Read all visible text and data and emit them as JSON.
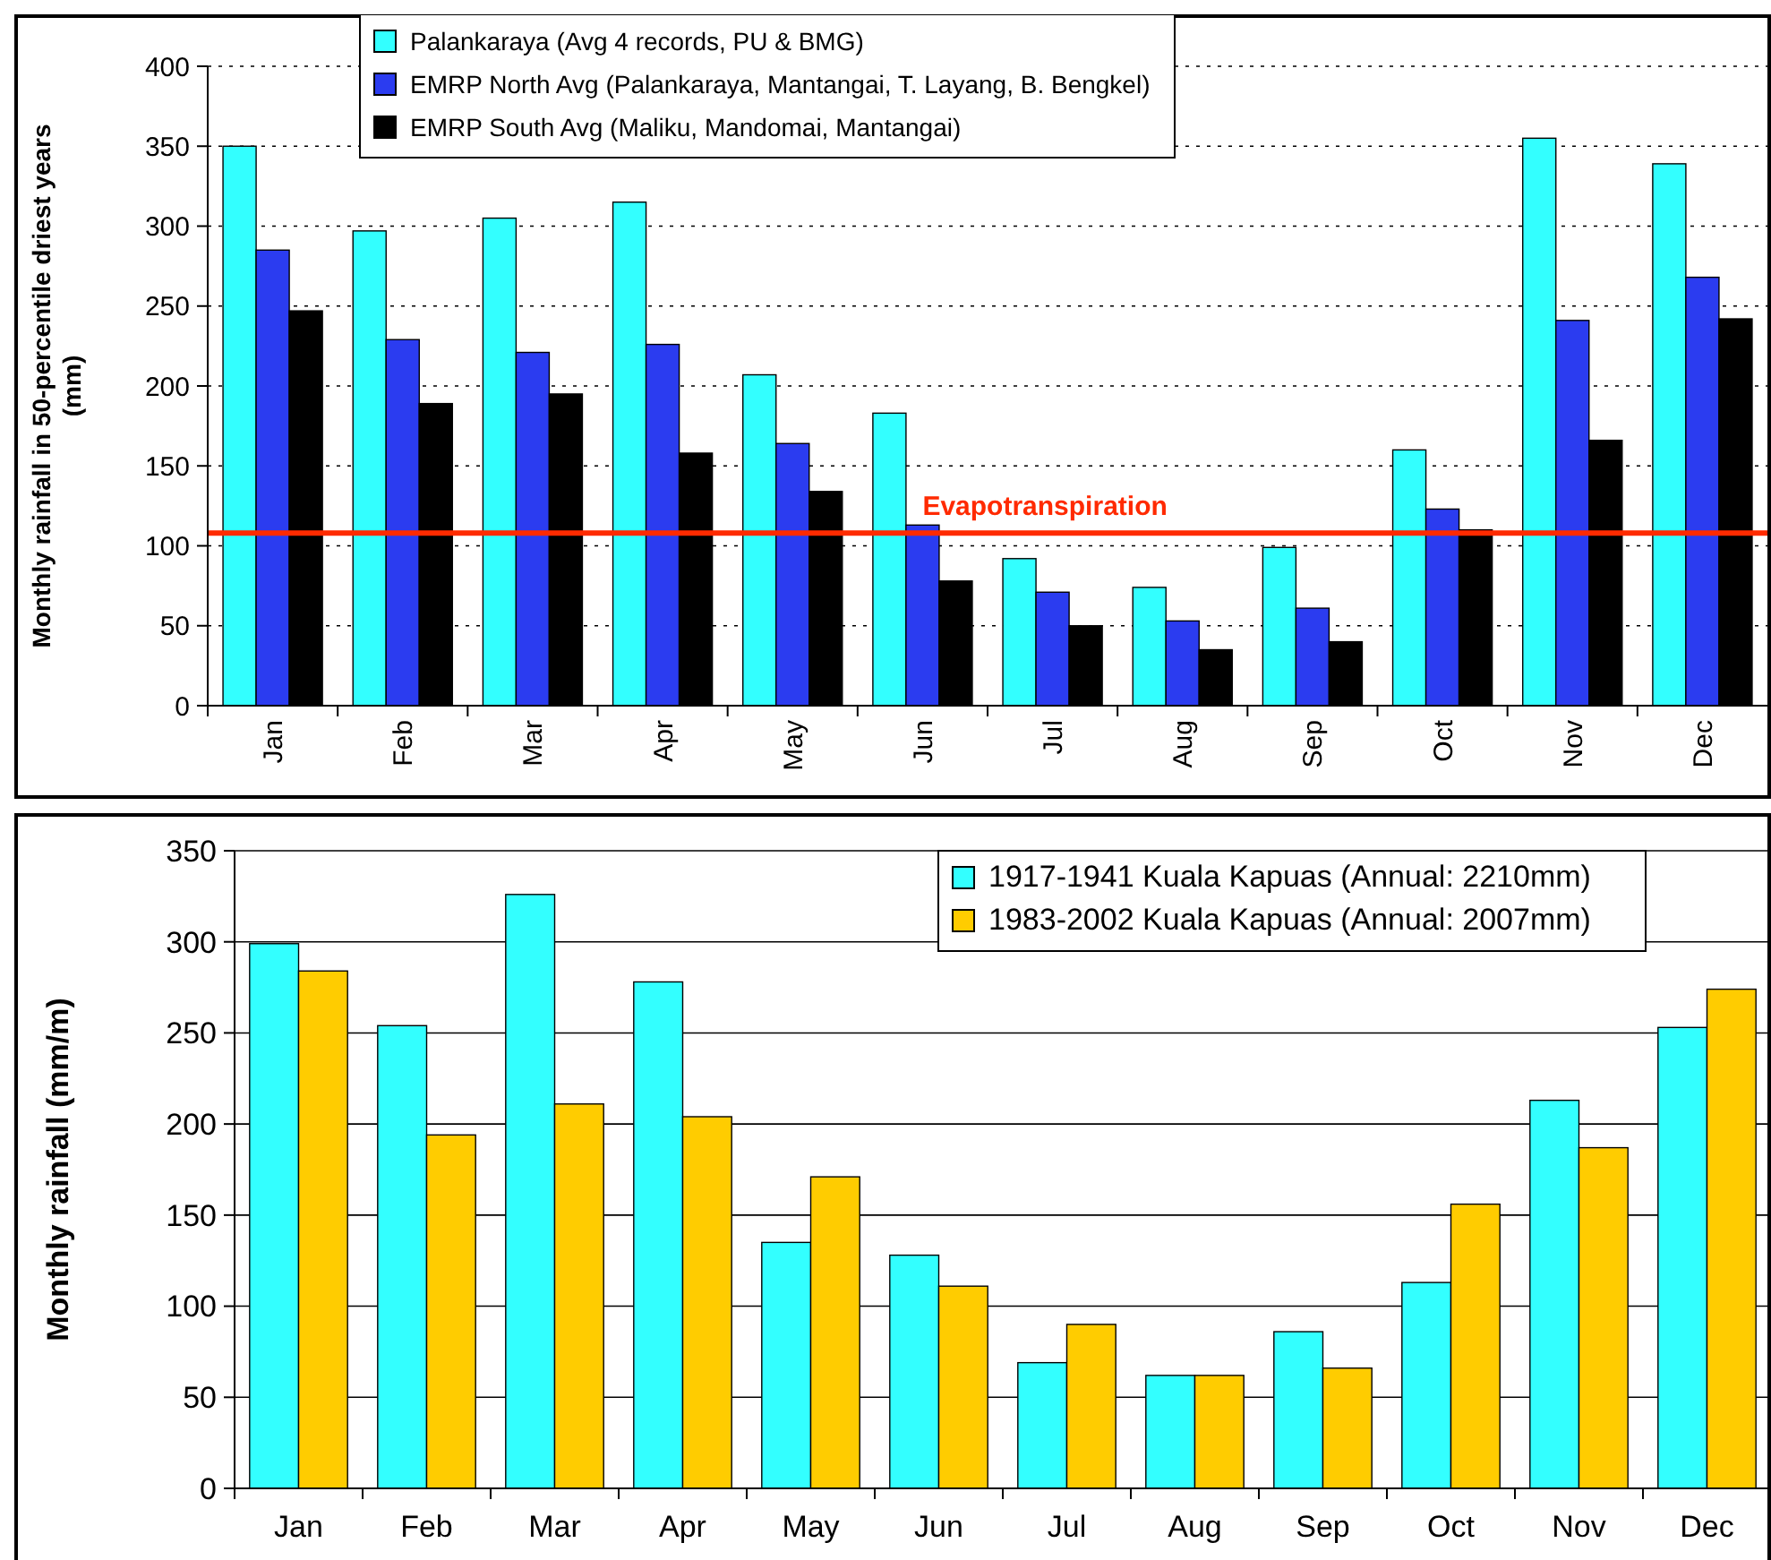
{
  "chart_data": [
    {
      "type": "bar",
      "ylabel": "Monthly rainfall in 50-percentile driest years (mm)",
      "categories": [
        "Jan",
        "Feb",
        "Mar",
        "Apr",
        "May",
        "Jun",
        "Jul",
        "Aug",
        "Sep",
        "Oct",
        "Nov",
        "Dec"
      ],
      "series": [
        {
          "name": "Palankaraya (Avg 4 records, PU & BMG)",
          "color": "#33ffff",
          "values": [
            350,
            297,
            305,
            315,
            207,
            183,
            92,
            74,
            99,
            160,
            355,
            339
          ]
        },
        {
          "name": "EMRP North Avg (Palankaraya, Mantangai, T. Layang, B. Bengkel)",
          "color": "#2b3cf0",
          "values": [
            285,
            229,
            221,
            226,
            164,
            113,
            71,
            53,
            61,
            123,
            241,
            268
          ]
        },
        {
          "name": "EMRP South Avg (Maliku, Mandomai, Mantangai)",
          "color": "#000000",
          "values": [
            247,
            189,
            195,
            158,
            134,
            78,
            50,
            35,
            40,
            110,
            166,
            242
          ]
        }
      ],
      "ylim": [
        0,
        400
      ],
      "yticks": [
        0,
        50,
        100,
        150,
        200,
        250,
        300,
        350,
        400
      ],
      "grid": "y",
      "legend": "top",
      "ref_lines": [
        {
          "axis": "y",
          "value": 108,
          "label": "Evapotranspiration",
          "color": "#ff2a00",
          "line_style": "solid"
        }
      ]
    },
    {
      "type": "bar",
      "ylabel": "Monthly rainfall (mm/m)",
      "categories": [
        "Jan",
        "Feb",
        "Mar",
        "Apr",
        "May",
        "Jun",
        "Jul",
        "Aug",
        "Sep",
        "Oct",
        "Nov",
        "Dec"
      ],
      "series": [
        {
          "name": "1917-1941 Kuala Kapuas (Annual: 2210mm)",
          "color": "#33ffff",
          "values": [
            299,
            254,
            326,
            278,
            135,
            128,
            69,
            62,
            86,
            113,
            213,
            253
          ]
        },
        {
          "name": "1983-2002 Kuala Kapuas (Annual: 2007mm)",
          "color": "#ffcc00",
          "values": [
            284,
            194,
            211,
            204,
            171,
            111,
            90,
            62,
            66,
            156,
            187,
            274
          ]
        }
      ],
      "ylim": [
        0,
        350
      ],
      "yticks": [
        0,
        50,
        100,
        150,
        200,
        250,
        300,
        350
      ],
      "grid": "y",
      "legend": "top right"
    }
  ]
}
